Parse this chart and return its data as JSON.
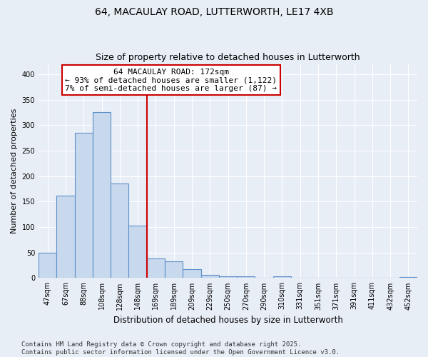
{
  "title": "64, MACAULAY ROAD, LUTTERWORTH, LE17 4XB",
  "subtitle": "Size of property relative to detached houses in Lutterworth",
  "xlabel": "Distribution of detached houses by size in Lutterworth",
  "ylabel": "Number of detached properties",
  "bar_values": [
    50,
    162,
    285,
    325,
    185,
    103,
    38,
    33,
    18,
    6,
    3,
    3,
    0,
    3,
    0,
    0,
    0,
    0,
    0,
    0,
    2
  ],
  "bin_labels": [
    "47sqm",
    "67sqm",
    "88sqm",
    "108sqm",
    "128sqm",
    "148sqm",
    "169sqm",
    "189sqm",
    "209sqm",
    "229sqm",
    "250sqm",
    "270sqm",
    "290sqm",
    "310sqm",
    "331sqm",
    "351sqm",
    "371sqm",
    "391sqm",
    "411sqm",
    "432sqm",
    "452sqm"
  ],
  "bar_color": "#c9d9ed",
  "bar_edge_color": "#5b8fc9",
  "bar_linewidth": 0.8,
  "vline_x_index": 5.5,
  "vline_color": "#cc0000",
  "vline_linewidth": 1.5,
  "annotation_text": "64 MACAULAY ROAD: 172sqm\n← 93% of detached houses are smaller (1,122)\n7% of semi-detached houses are larger (87) →",
  "annotation_box_color": "#cc0000",
  "ylim": [
    0,
    420
  ],
  "yticks": [
    0,
    50,
    100,
    150,
    200,
    250,
    300,
    350,
    400
  ],
  "bg_color": "#e8eef6",
  "grid_color": "#ffffff",
  "footer_text": "Contains HM Land Registry data © Crown copyright and database right 2025.\nContains public sector information licensed under the Open Government Licence v3.0.",
  "title_fontsize": 10,
  "subtitle_fontsize": 9,
  "xlabel_fontsize": 8.5,
  "ylabel_fontsize": 8,
  "tick_fontsize": 7,
  "annotation_fontsize": 8,
  "footer_fontsize": 6.5
}
